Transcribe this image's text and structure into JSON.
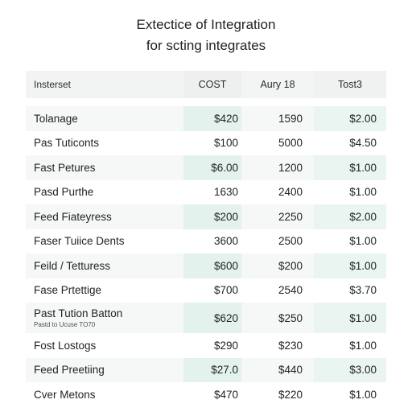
{
  "title": {
    "line1": "Extectice of Integration",
    "line2": "for scting integrates"
  },
  "table": {
    "headers": [
      "Insterset",
      "COST",
      "Aury 18",
      "Tost3"
    ],
    "rows": [
      {
        "name": "Tolanage",
        "sub": "",
        "cost": "$420",
        "aury": "1590",
        "tost": "$2.00"
      },
      {
        "name": "Pas Tuticonts",
        "sub": "",
        "cost": "$100",
        "aury": "5000",
        "tost": "$4.50"
      },
      {
        "name": "Fast Petures",
        "sub": "",
        "cost": "$6.00",
        "aury": "1200",
        "tost": "$1.00"
      },
      {
        "name": "Pasd Purthe",
        "sub": "",
        "cost": "1630",
        "aury": "2400",
        "tost": "$1.00"
      },
      {
        "name": "Feed Fiateyress",
        "sub": "",
        "cost": "$200",
        "aury": "2250",
        "tost": "$2.00"
      },
      {
        "name": "Faser Tuiice Dents",
        "sub": "",
        "cost": "3600",
        "aury": "2500",
        "tost": "$1.00"
      },
      {
        "name": "Feild / Tetturess",
        "sub": "",
        "cost": "$600",
        "aury": "$200",
        "tost": "$1.00"
      },
      {
        "name": "Fase Prtettige",
        "sub": "",
        "cost": "$700",
        "aury": "2540",
        "tost": "$3.70"
      },
      {
        "name": "Past Tution Batton",
        "sub": "Pastd to Ucuse TO70",
        "cost": "$620",
        "aury": "$250",
        "tost": "$1.00"
      },
      {
        "name": "Fost Lostogs",
        "sub": "",
        "cost": "$290",
        "aury": "$230",
        "tost": "$1.00"
      },
      {
        "name": "Feed Preetiing",
        "sub": "",
        "cost": "$27.0",
        "aury": "$440",
        "tost": "$3.00"
      },
      {
        "name": "Cver Metons",
        "sub": "",
        "cost": "$470",
        "aury": "$220",
        "tost": "$1.00"
      }
    ]
  },
  "colors": {
    "accent": "#e4f2ee",
    "row_bg": "#f6f7f7",
    "text": "#202427"
  }
}
